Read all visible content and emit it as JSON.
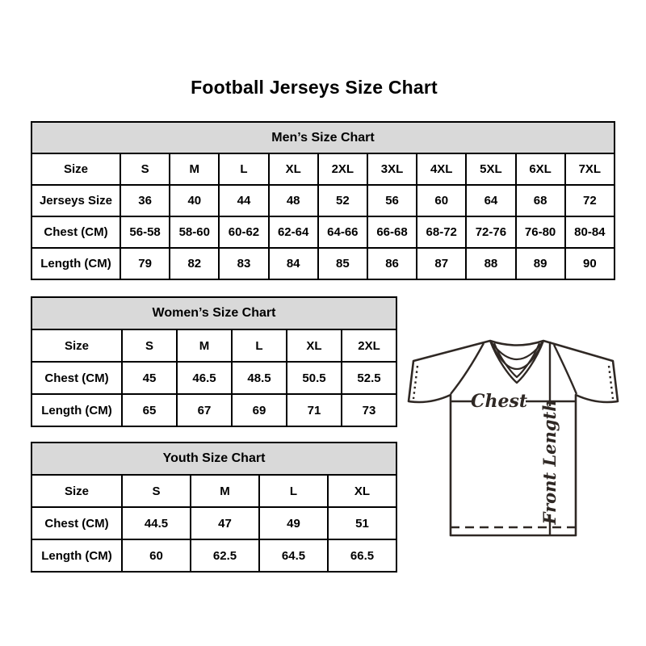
{
  "page": {
    "title": "Football Jerseys Size Chart"
  },
  "tables": [
    {
      "id": "mens",
      "title": "Men’s Size Chart",
      "rows": [
        {
          "label": "Size",
          "values": [
            "S",
            "M",
            "L",
            "XL",
            "2XL",
            "3XL",
            "4XL",
            "5XL",
            "6XL",
            "7XL"
          ]
        },
        {
          "label": "Jerseys Size",
          "values": [
            "36",
            "40",
            "44",
            "48",
            "52",
            "56",
            "60",
            "64",
            "68",
            "72"
          ]
        },
        {
          "label": "Chest (CM)",
          "values": [
            "56-58",
            "58-60",
            "60-62",
            "62-64",
            "64-66",
            "66-68",
            "68-72",
            "72-76",
            "76-80",
            "80-84"
          ]
        },
        {
          "label": "Length (CM)",
          "values": [
            "79",
            "82",
            "83",
            "84",
            "85",
            "86",
            "87",
            "88",
            "89",
            "90"
          ]
        }
      ]
    },
    {
      "id": "womens",
      "title": "Women’s Size Chart",
      "rows": [
        {
          "label": "Size",
          "values": [
            "S",
            "M",
            "L",
            "XL",
            "2XL"
          ]
        },
        {
          "label": "Chest (CM)",
          "values": [
            "45",
            "46.5",
            "48.5",
            "50.5",
            "52.5"
          ]
        },
        {
          "label": "Length (CM)",
          "values": [
            "65",
            "67",
            "69",
            "71",
            "73"
          ]
        }
      ]
    },
    {
      "id": "youth",
      "title": "Youth Size Chart",
      "rows": [
        {
          "label": "Size",
          "values": [
            "S",
            "M",
            "L",
            "XL"
          ]
        },
        {
          "label": "Chest (CM)",
          "values": [
            "44.5",
            "47",
            "49",
            "51"
          ]
        },
        {
          "label": "Length (CM)",
          "values": [
            "60",
            "62.5",
            "64.5",
            "66.5"
          ]
        }
      ]
    }
  ],
  "diagram": {
    "chest_label": "Chest",
    "front_length_label": "Front Length"
  },
  "colors": {
    "header_bg": "#d9d9d9",
    "table_border": "#000000",
    "text": "#000000",
    "diagram_line": "#2f2824"
  }
}
